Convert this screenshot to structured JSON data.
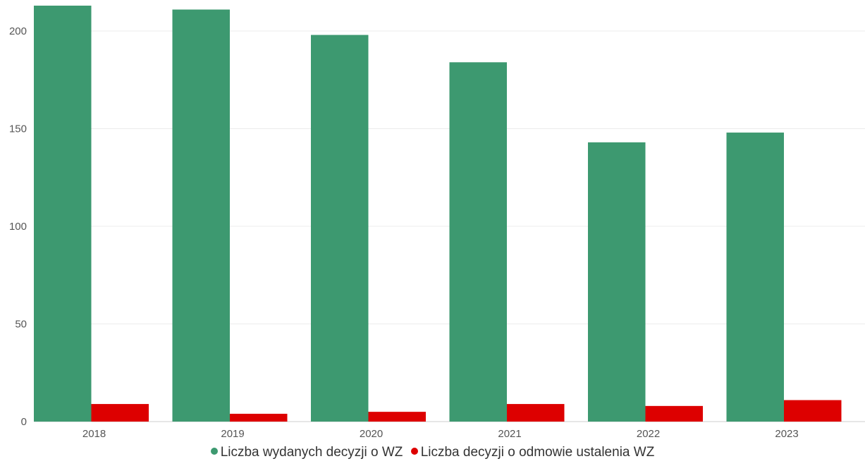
{
  "chart_data": {
    "type": "bar",
    "title": "",
    "xlabel": "",
    "ylabel": "",
    "categories": [
      "2018",
      "2019",
      "2020",
      "2021",
      "2022",
      "2023"
    ],
    "series": [
      {
        "name": "Liczba wydanych decyzji o WZ",
        "color": "#3d9970",
        "values": [
          213,
          211,
          198,
          184,
          143,
          148
        ]
      },
      {
        "name": "Liczba decyzji o odmowie ustalenia WZ",
        "color": "#dd0000",
        "values": [
          9,
          4,
          5,
          9,
          8,
          11
        ]
      }
    ],
    "ylim": [
      0,
      213
    ],
    "yticks": [
      "0",
      "50",
      "100",
      "150",
      "200"
    ],
    "grid": true,
    "legend_position": "bottom-center"
  }
}
